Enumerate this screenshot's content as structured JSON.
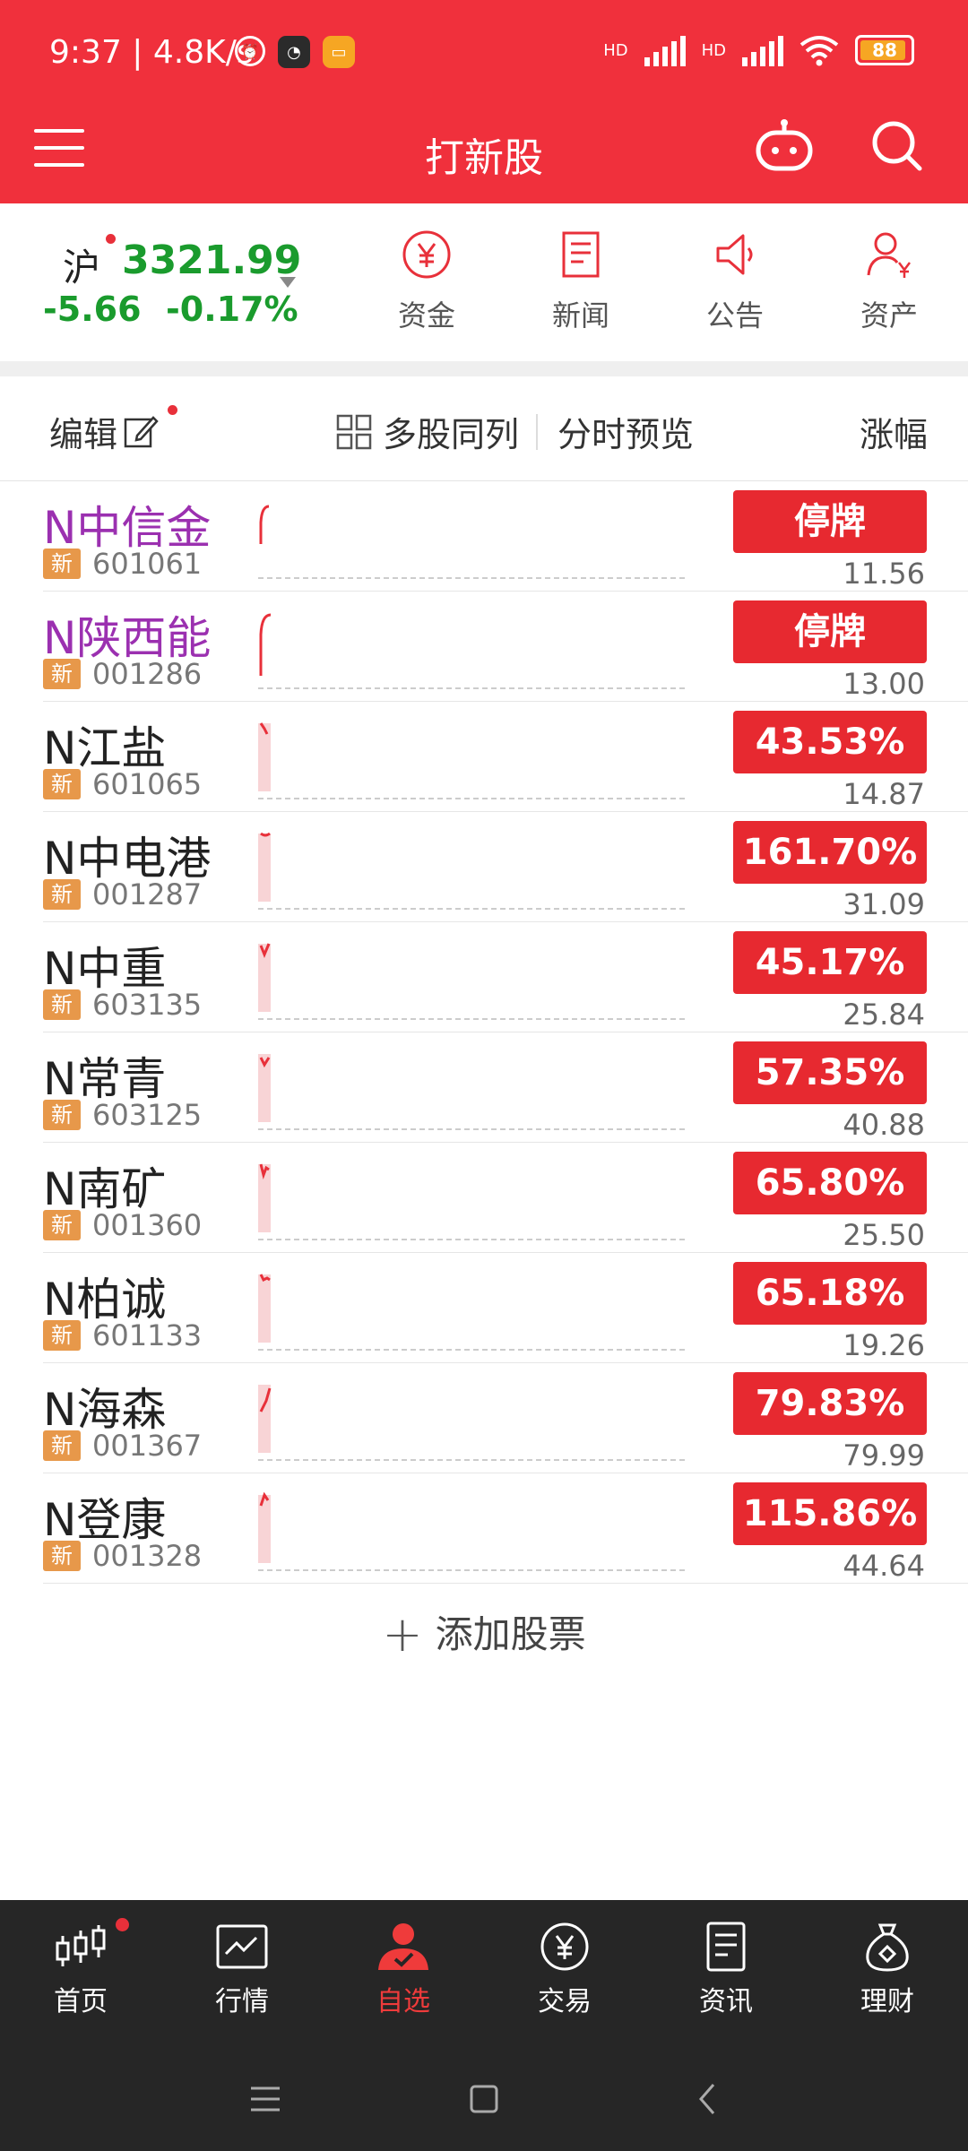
{
  "status_bar": {
    "time": "9:37",
    "speed": "4.8K/s",
    "battery": "88",
    "hd1": "HD",
    "hd2": "HD"
  },
  "header": {
    "title": "打新股"
  },
  "index": {
    "name": "沪",
    "value": "3321.99",
    "change": "-5.66",
    "change_pct": "-0.17%"
  },
  "quick_actions": [
    {
      "label": "资金",
      "icon": "yuan-circle-icon"
    },
    {
      "label": "新闻",
      "icon": "news-doc-icon"
    },
    {
      "label": "公告",
      "icon": "megaphone-icon"
    },
    {
      "label": "资产",
      "icon": "user-asset-icon"
    }
  ],
  "toolbar": {
    "edit": "编辑",
    "multi": "多股同列",
    "preview": "分时预览",
    "sort": "涨幅"
  },
  "stocks": [
    {
      "name": "N中信金",
      "code": "601061",
      "badge": "新",
      "change": "停牌",
      "price": "11.56",
      "purple": true
    },
    {
      "name": "N陕西能",
      "code": "001286",
      "badge": "新",
      "change": "停牌",
      "price": "13.00",
      "purple": true
    },
    {
      "name": "N江盐",
      "code": "601065",
      "badge": "新",
      "change": "43.53%",
      "price": "14.87",
      "purple": false
    },
    {
      "name": "N中电港",
      "code": "001287",
      "badge": "新",
      "change": "161.70%",
      "price": "31.09",
      "purple": false
    },
    {
      "name": "N中重",
      "code": "603135",
      "badge": "新",
      "change": "45.17%",
      "price": "25.84",
      "purple": false
    },
    {
      "name": "N常青",
      "code": "603125",
      "badge": "新",
      "change": "57.35%",
      "price": "40.88",
      "purple": false
    },
    {
      "name": "N南矿",
      "code": "001360",
      "badge": "新",
      "change": "65.80%",
      "price": "25.50",
      "purple": false
    },
    {
      "name": "N柏诚",
      "code": "601133",
      "badge": "新",
      "change": "65.18%",
      "price": "19.26",
      "purple": false
    },
    {
      "name": "N海森",
      "code": "001367",
      "badge": "新",
      "change": "79.83%",
      "price": "79.99",
      "purple": false
    },
    {
      "name": "N登康",
      "code": "001328",
      "badge": "新",
      "change": "115.86%",
      "price": "44.64",
      "purple": false
    }
  ],
  "add_stock": "添加股票",
  "bottom_nav": [
    {
      "label": "首页",
      "icon": "candlestick-icon",
      "active": false
    },
    {
      "label": "行情",
      "icon": "market-chart-icon",
      "active": false
    },
    {
      "label": "自选",
      "icon": "user-favorite-icon",
      "active": true
    },
    {
      "label": "交易",
      "icon": "trade-yuan-icon",
      "active": false
    },
    {
      "label": "资讯",
      "icon": "info-doc-icon",
      "active": false
    },
    {
      "label": "理财",
      "icon": "money-bag-icon",
      "active": false
    }
  ],
  "colors": {
    "brand_red": "#f0303c",
    "down_green": "#1a9b2d",
    "pill_red": "#e72930",
    "nav_bg": "#262626"
  }
}
